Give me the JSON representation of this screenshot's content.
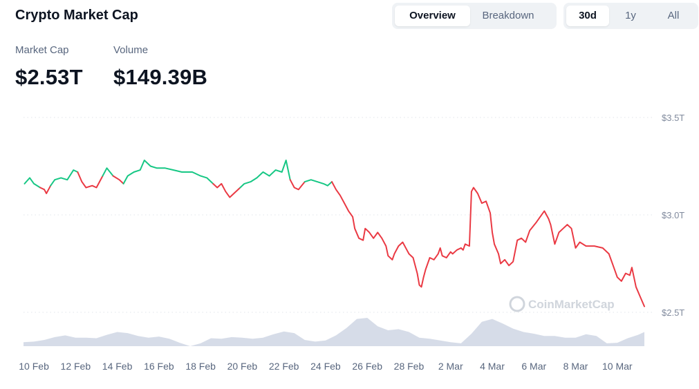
{
  "header": {
    "title": "Crypto Market Cap"
  },
  "view_tabs": [
    {
      "label": "Overview",
      "active": true
    },
    {
      "label": "Breakdown",
      "active": false
    }
  ],
  "range_tabs": [
    {
      "label": "30d",
      "active": true
    },
    {
      "label": "1y",
      "active": false
    },
    {
      "label": "All",
      "active": false
    }
  ],
  "stats": {
    "market_cap": {
      "label": "Market Cap",
      "value": "$2.53T"
    },
    "volume": {
      "label": "Volume",
      "value": "$149.39B"
    }
  },
  "watermark": "CoinMarketCap",
  "colors": {
    "up": "#16c784",
    "down": "#ea3943",
    "volume": "#cfd6e4",
    "grid": "#e0e4ea"
  },
  "chart_data": {
    "type": "line",
    "y_ticks": [
      "$3.5T",
      "$3.0T",
      "$2.5T"
    ],
    "y_tick_values": [
      3.5,
      3.0,
      2.5
    ],
    "ylim": [
      2.5,
      3.5
    ],
    "x_ticks": [
      "10 Feb",
      "12 Feb",
      "14 Feb",
      "16 Feb",
      "18 Feb",
      "20 Feb",
      "22 Feb",
      "24 Feb",
      "26 Feb",
      "28 Feb",
      "2 Mar",
      "4 Mar",
      "6 Mar",
      "8 Mar",
      "10 Mar"
    ],
    "x_tick_days": [
      1,
      3,
      5,
      7,
      9,
      11,
      13,
      15,
      17,
      19,
      21,
      23,
      25,
      27,
      29
    ],
    "x_range": [
      0.5,
      30.5
    ],
    "grid": true,
    "series": [
      {
        "values": [
          [
            0.55,
            3.16
          ],
          [
            0.8,
            3.19
          ],
          [
            1.0,
            3.16
          ],
          [
            1.3,
            3.14
          ],
          [
            1.5,
            3.13
          ],
          [
            1.6,
            3.11
          ],
          [
            1.8,
            3.15
          ],
          [
            2.0,
            3.18
          ],
          [
            2.3,
            3.19
          ],
          [
            2.6,
            3.18
          ],
          [
            2.9,
            3.23
          ],
          [
            3.1,
            3.22
          ],
          [
            3.3,
            3.17
          ],
          [
            3.5,
            3.14
          ],
          [
            3.8,
            3.15
          ],
          [
            4.0,
            3.14
          ],
          [
            4.3,
            3.2
          ],
          [
            4.5,
            3.24
          ],
          [
            4.8,
            3.2
          ],
          [
            5.1,
            3.18
          ],
          [
            5.3,
            3.16
          ],
          [
            5.5,
            3.2
          ],
          [
            5.8,
            3.22
          ],
          [
            6.1,
            3.23
          ],
          [
            6.3,
            3.28
          ],
          [
            6.6,
            3.25
          ],
          [
            6.9,
            3.24
          ],
          [
            7.3,
            3.24
          ],
          [
            7.7,
            3.23
          ],
          [
            8.1,
            3.22
          ],
          [
            8.6,
            3.22
          ],
          [
            9.0,
            3.2
          ],
          [
            9.3,
            3.19
          ],
          [
            9.6,
            3.16
          ],
          [
            9.8,
            3.14
          ],
          [
            10.0,
            3.16
          ],
          [
            10.2,
            3.12
          ],
          [
            10.4,
            3.09
          ],
          [
            10.6,
            3.11
          ],
          [
            10.9,
            3.14
          ],
          [
            11.1,
            3.16
          ],
          [
            11.4,
            3.17
          ],
          [
            11.7,
            3.19
          ],
          [
            12.0,
            3.22
          ],
          [
            12.3,
            3.2
          ],
          [
            12.6,
            3.23
          ],
          [
            12.9,
            3.22
          ],
          [
            13.1,
            3.28
          ],
          [
            13.3,
            3.18
          ],
          [
            13.5,
            3.14
          ],
          [
            13.7,
            3.13
          ],
          [
            14.0,
            3.17
          ],
          [
            14.3,
            3.18
          ],
          [
            14.6,
            3.17
          ],
          [
            14.9,
            3.16
          ],
          [
            15.1,
            3.15
          ],
          [
            15.3,
            3.17
          ],
          [
            15.5,
            3.13
          ],
          [
            15.7,
            3.1
          ],
          [
            15.9,
            3.06
          ],
          [
            16.1,
            3.02
          ],
          [
            16.3,
            2.99
          ],
          [
            16.4,
            2.93
          ],
          [
            16.6,
            2.88
          ],
          [
            16.8,
            2.87
          ],
          [
            16.9,
            2.93
          ],
          [
            17.1,
            2.91
          ],
          [
            17.3,
            2.88
          ],
          [
            17.5,
            2.91
          ],
          [
            17.7,
            2.88
          ],
          [
            17.9,
            2.84
          ],
          [
            18.0,
            2.79
          ],
          [
            18.2,
            2.77
          ],
          [
            18.3,
            2.8
          ],
          [
            18.5,
            2.84
          ],
          [
            18.7,
            2.86
          ],
          [
            18.9,
            2.82
          ],
          [
            19.0,
            2.8
          ],
          [
            19.2,
            2.78
          ],
          [
            19.4,
            2.7
          ],
          [
            19.5,
            2.64
          ],
          [
            19.6,
            2.63
          ],
          [
            19.7,
            2.68
          ],
          [
            19.8,
            2.72
          ],
          [
            20.0,
            2.78
          ],
          [
            20.2,
            2.77
          ],
          [
            20.4,
            2.8
          ],
          [
            20.5,
            2.83
          ],
          [
            20.6,
            2.79
          ],
          [
            20.8,
            2.78
          ],
          [
            21.0,
            2.81
          ],
          [
            21.1,
            2.8
          ],
          [
            21.3,
            2.82
          ],
          [
            21.5,
            2.83
          ],
          [
            21.6,
            2.82
          ],
          [
            21.7,
            2.85
          ],
          [
            21.9,
            2.84
          ],
          [
            22.0,
            3.12
          ],
          [
            22.1,
            3.14
          ],
          [
            22.3,
            3.11
          ],
          [
            22.5,
            3.06
          ],
          [
            22.7,
            3.07
          ],
          [
            22.9,
            3.01
          ],
          [
            23.0,
            2.91
          ],
          [
            23.1,
            2.85
          ],
          [
            23.3,
            2.8
          ],
          [
            23.4,
            2.75
          ],
          [
            23.6,
            2.77
          ],
          [
            23.8,
            2.74
          ],
          [
            24.0,
            2.76
          ],
          [
            24.2,
            2.87
          ],
          [
            24.4,
            2.88
          ],
          [
            24.6,
            2.86
          ],
          [
            24.8,
            2.92
          ],
          [
            25.1,
            2.96
          ],
          [
            25.3,
            2.99
          ],
          [
            25.5,
            3.02
          ],
          [
            25.7,
            2.98
          ],
          [
            25.8,
            2.95
          ],
          [
            25.9,
            2.9
          ],
          [
            26.0,
            2.85
          ],
          [
            26.2,
            2.91
          ],
          [
            26.4,
            2.93
          ],
          [
            26.6,
            2.95
          ],
          [
            26.8,
            2.93
          ],
          [
            26.9,
            2.88
          ],
          [
            27.0,
            2.83
          ],
          [
            27.2,
            2.86
          ],
          [
            27.5,
            2.84
          ],
          [
            27.9,
            2.84
          ],
          [
            28.3,
            2.83
          ],
          [
            28.6,
            2.8
          ],
          [
            28.8,
            2.74
          ],
          [
            29.0,
            2.68
          ],
          [
            29.2,
            2.66
          ],
          [
            29.4,
            2.7
          ],
          [
            29.6,
            2.69
          ],
          [
            29.7,
            2.73
          ],
          [
            29.8,
            2.68
          ],
          [
            29.9,
            2.63
          ],
          [
            30.1,
            2.58
          ],
          [
            30.3,
            2.53
          ]
        ],
        "colors_by_segment": {
          "up": [
            [
              0.55,
              1.3
            ],
            [
              1.8,
              3.1
            ],
            [
              4.3,
              4.8
            ],
            [
              5.3,
              9.6
            ],
            [
              10.9,
              13.3
            ],
            [
              14.0,
              15.3
            ]
          ],
          "down": [
            [
              1.3,
              1.8
            ],
            [
              3.1,
              4.3
            ],
            [
              4.8,
              5.3
            ],
            [
              9.6,
              10.9
            ],
            [
              13.3,
              14.0
            ],
            [
              15.3,
              30.3
            ]
          ]
        }
      }
    ],
    "volume": {
      "x": [
        0.5,
        1.0,
        1.5,
        2.0,
        2.5,
        3.0,
        3.5,
        4.0,
        4.5,
        5.0,
        5.5,
        6.0,
        6.5,
        7.0,
        7.5,
        8.0,
        8.5,
        9.0,
        9.5,
        10.0,
        10.5,
        11.0,
        11.5,
        12.0,
        12.5,
        13.0,
        13.5,
        14.0,
        14.5,
        15.0,
        15.5,
        16.0,
        16.5,
        17.0,
        17.5,
        18.0,
        18.5,
        19.0,
        19.5,
        20.0,
        20.5,
        21.0,
        21.5,
        22.0,
        22.5,
        23.0,
        23.5,
        24.0,
        24.5,
        25.0,
        25.5,
        26.0,
        26.5,
        27.0,
        27.5,
        28.0,
        28.5,
        29.0,
        29.5,
        30.0,
        30.3
      ],
      "values": [
        0.14,
        0.16,
        0.22,
        0.32,
        0.38,
        0.3,
        0.3,
        0.28,
        0.4,
        0.5,
        0.46,
        0.36,
        0.3,
        0.34,
        0.26,
        0.12,
        0.0,
        0.1,
        0.28,
        0.26,
        0.32,
        0.3,
        0.26,
        0.3,
        0.42,
        0.52,
        0.46,
        0.22,
        0.16,
        0.2,
        0.38,
        0.64,
        0.96,
        1.0,
        0.7,
        0.56,
        0.6,
        0.5,
        0.3,
        0.26,
        0.2,
        0.14,
        0.1,
        0.44,
        0.86,
        0.96,
        0.8,
        0.62,
        0.5,
        0.44,
        0.36,
        0.36,
        0.3,
        0.3,
        0.42,
        0.36,
        0.1,
        0.12,
        0.28,
        0.4,
        0.5
      ]
    }
  }
}
